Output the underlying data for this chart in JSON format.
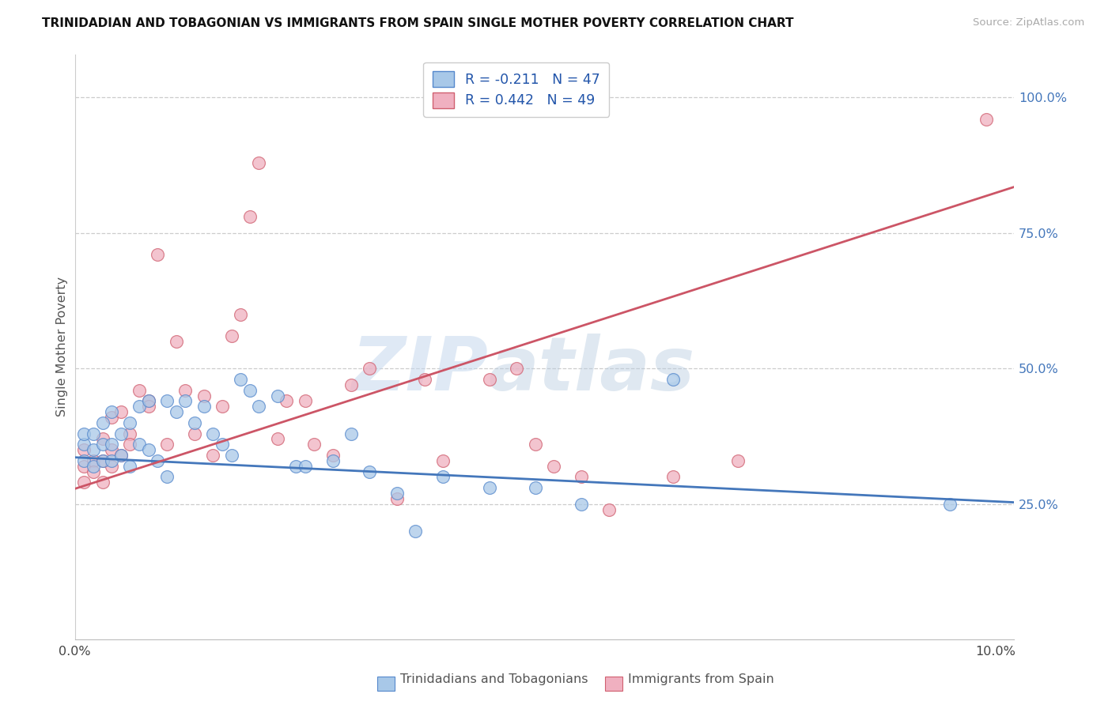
{
  "title": "TRINIDADIAN AND TOBAGONIAN VS IMMIGRANTS FROM SPAIN SINGLE MOTHER POVERTY CORRELATION CHART",
  "source": "Source: ZipAtlas.com",
  "ylabel": "Single Mother Poverty",
  "xlim": [
    0.0,
    0.102
  ],
  "ylim": [
    0.0,
    1.08
  ],
  "ytick_vals_right": [
    0.25,
    0.5,
    0.75,
    1.0
  ],
  "ytick_labels_right": [
    "25.0%",
    "50.0%",
    "75.0%",
    "100.0%"
  ],
  "legend_line1": "R = -0.211   N = 47",
  "legend_line2": "R = 0.442   N = 49",
  "color_blue_fill": "#a8c8e8",
  "color_blue_edge": "#5588cc",
  "color_pink_fill": "#f0b0c0",
  "color_pink_edge": "#d06070",
  "color_line_blue": "#4477bb",
  "color_line_pink": "#cc5566",
  "watermark_zip": "ZIP",
  "watermark_atlas": "atlas",
  "blue_x": [
    0.001,
    0.001,
    0.001,
    0.002,
    0.002,
    0.002,
    0.003,
    0.003,
    0.003,
    0.004,
    0.004,
    0.004,
    0.005,
    0.005,
    0.006,
    0.006,
    0.007,
    0.007,
    0.008,
    0.008,
    0.009,
    0.01,
    0.01,
    0.011,
    0.012,
    0.013,
    0.014,
    0.015,
    0.016,
    0.017,
    0.018,
    0.019,
    0.02,
    0.022,
    0.024,
    0.025,
    0.028,
    0.03,
    0.032,
    0.035,
    0.037,
    0.04,
    0.045,
    0.05,
    0.055,
    0.065,
    0.095
  ],
  "blue_y": [
    0.33,
    0.36,
    0.38,
    0.32,
    0.35,
    0.38,
    0.33,
    0.36,
    0.4,
    0.33,
    0.36,
    0.42,
    0.34,
    0.38,
    0.32,
    0.4,
    0.36,
    0.43,
    0.35,
    0.44,
    0.33,
    0.3,
    0.44,
    0.42,
    0.44,
    0.4,
    0.43,
    0.38,
    0.36,
    0.34,
    0.48,
    0.46,
    0.43,
    0.45,
    0.32,
    0.32,
    0.33,
    0.38,
    0.31,
    0.27,
    0.2,
    0.3,
    0.28,
    0.28,
    0.25,
    0.48,
    0.25
  ],
  "pink_x": [
    0.001,
    0.001,
    0.001,
    0.002,
    0.002,
    0.003,
    0.003,
    0.003,
    0.004,
    0.004,
    0.004,
    0.005,
    0.005,
    0.006,
    0.006,
    0.007,
    0.008,
    0.008,
    0.009,
    0.01,
    0.011,
    0.012,
    0.013,
    0.014,
    0.015,
    0.016,
    0.017,
    0.018,
    0.019,
    0.02,
    0.022,
    0.023,
    0.025,
    0.026,
    0.028,
    0.03,
    0.032,
    0.035,
    0.038,
    0.04,
    0.045,
    0.048,
    0.05,
    0.052,
    0.055,
    0.058,
    0.065,
    0.072,
    0.099
  ],
  "pink_y": [
    0.32,
    0.35,
    0.29,
    0.33,
    0.31,
    0.33,
    0.37,
    0.29,
    0.32,
    0.41,
    0.35,
    0.34,
    0.42,
    0.38,
    0.36,
    0.46,
    0.44,
    0.43,
    0.71,
    0.36,
    0.55,
    0.46,
    0.38,
    0.45,
    0.34,
    0.43,
    0.56,
    0.6,
    0.78,
    0.88,
    0.37,
    0.44,
    0.44,
    0.36,
    0.34,
    0.47,
    0.5,
    0.26,
    0.48,
    0.33,
    0.48,
    0.5,
    0.36,
    0.32,
    0.3,
    0.24,
    0.3,
    0.33,
    0.96
  ],
  "blue_line_x0": 0.0,
  "blue_line_x1": 0.102,
  "blue_line_y0": 0.336,
  "blue_line_y1": 0.253,
  "pink_line_x0": 0.0,
  "pink_line_x1": 0.102,
  "pink_line_y0": 0.278,
  "pink_line_y1": 0.835
}
